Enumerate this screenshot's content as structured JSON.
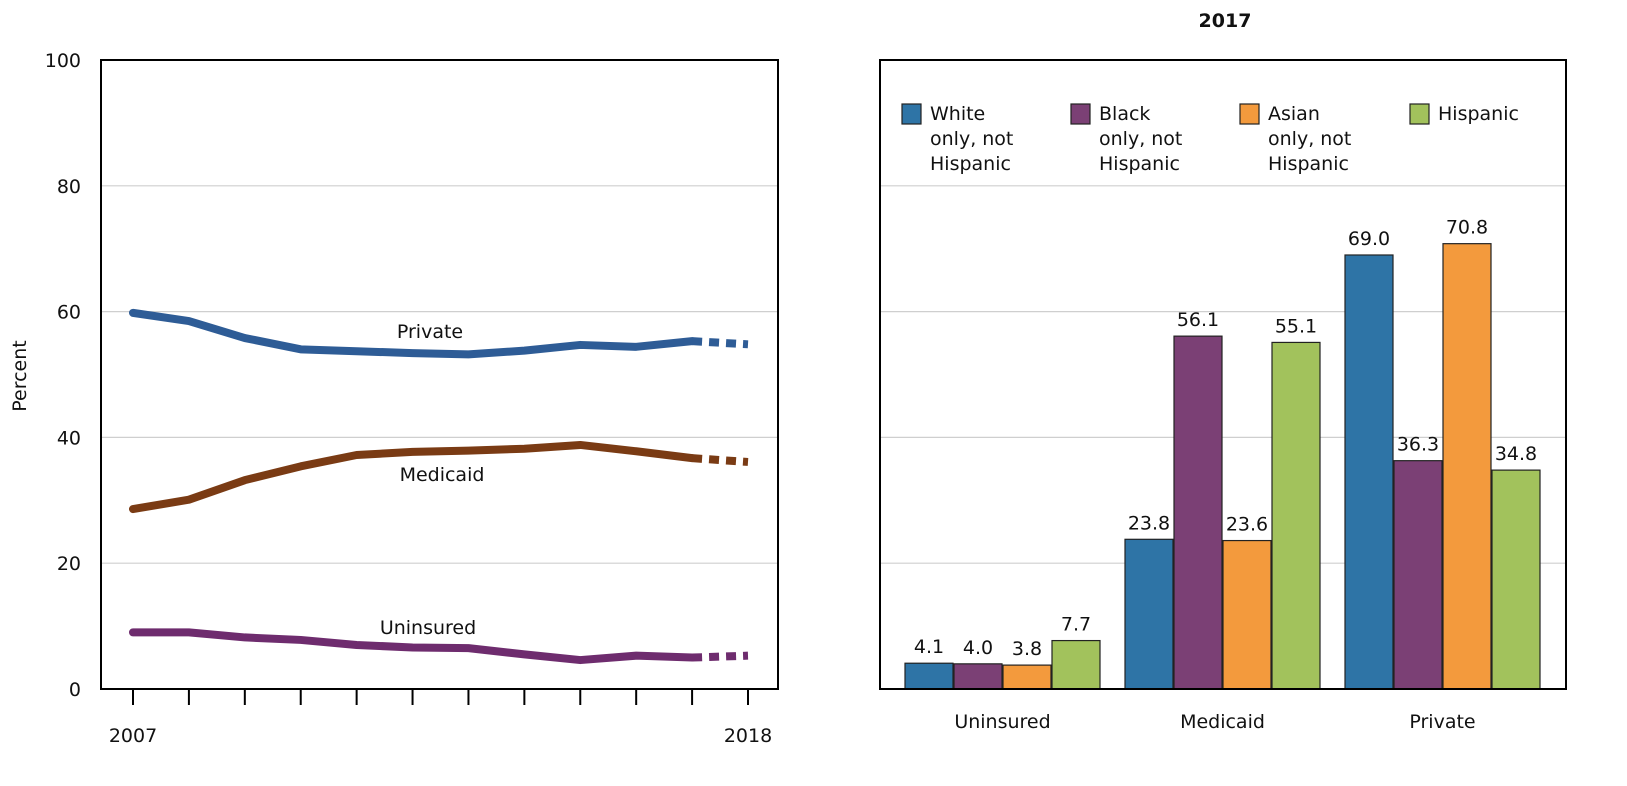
{
  "chart_data": [
    {
      "type": "line",
      "title": "",
      "xlabel": "",
      "ylabel": "Percent",
      "ylim": [
        0,
        100
      ],
      "yticks": [
        "0",
        "20",
        "40",
        "60",
        "80",
        "100"
      ],
      "xtick_labels": [
        "2007",
        "2018"
      ],
      "x": [
        2007,
        2008,
        2009,
        2010,
        2011,
        2012,
        2013,
        2014,
        2015,
        2016,
        2017,
        2018
      ],
      "grid": true,
      "series": [
        {
          "name": "Private",
          "color": "#2e5c96",
          "values": [
            59.8,
            58.5,
            55.8,
            54.0,
            53.7,
            53.4,
            53.2,
            53.8,
            54.7,
            54.4,
            55.3,
            54.8
          ],
          "projected_from_index": 10
        },
        {
          "name": "Medicaid",
          "color": "#7a3b14",
          "values": [
            28.6,
            30.1,
            33.2,
            35.4,
            37.2,
            37.7,
            37.9,
            38.2,
            38.8,
            37.8,
            36.7,
            36.1
          ],
          "projected_from_index": 10
        },
        {
          "name": "Uninsured",
          "color": "#6e2c6e",
          "values": [
            9.0,
            9.0,
            8.2,
            7.8,
            7.0,
            6.6,
            6.5,
            5.5,
            4.6,
            5.3,
            5.0,
            5.3
          ],
          "projected_from_index": 10
        }
      ]
    },
    {
      "type": "bar",
      "title": "2017",
      "xlabel": "",
      "ylabel": "",
      "ylim": [
        0,
        100
      ],
      "grid": true,
      "legend_position": "top",
      "categories": [
        "Uninsured",
        "Medicaid",
        "Private"
      ],
      "series": [
        {
          "name": "White only, not Hispanic",
          "legend_lines": [
            "White",
            "only, not",
            "Hispanic"
          ],
          "color": "#2e74a6",
          "values": [
            4.1,
            23.8,
            69.0
          ],
          "labels": [
            "4.1",
            "23.8",
            "69.0"
          ]
        },
        {
          "name": "Black only, not Hispanic",
          "legend_lines": [
            "Black",
            "only, not",
            "Hispanic"
          ],
          "color": "#7b4075",
          "values": [
            4.0,
            56.1,
            36.3
          ],
          "labels": [
            "4.0",
            "56.1",
            "36.3"
          ]
        },
        {
          "name": "Asian only, not Hispanic",
          "legend_lines": [
            "Asian",
            "only, not",
            "Hispanic"
          ],
          "color": "#f39a3d",
          "values": [
            3.8,
            23.6,
            70.8
          ],
          "labels": [
            "3.8",
            "23.6",
            "70.8"
          ]
        },
        {
          "name": "Hispanic",
          "legend_lines": [
            "Hispanic"
          ],
          "color": "#a2c25c",
          "values": [
            7.7,
            55.1,
            34.8
          ],
          "labels": [
            "7.7",
            "55.1",
            "34.8"
          ]
        }
      ]
    }
  ]
}
